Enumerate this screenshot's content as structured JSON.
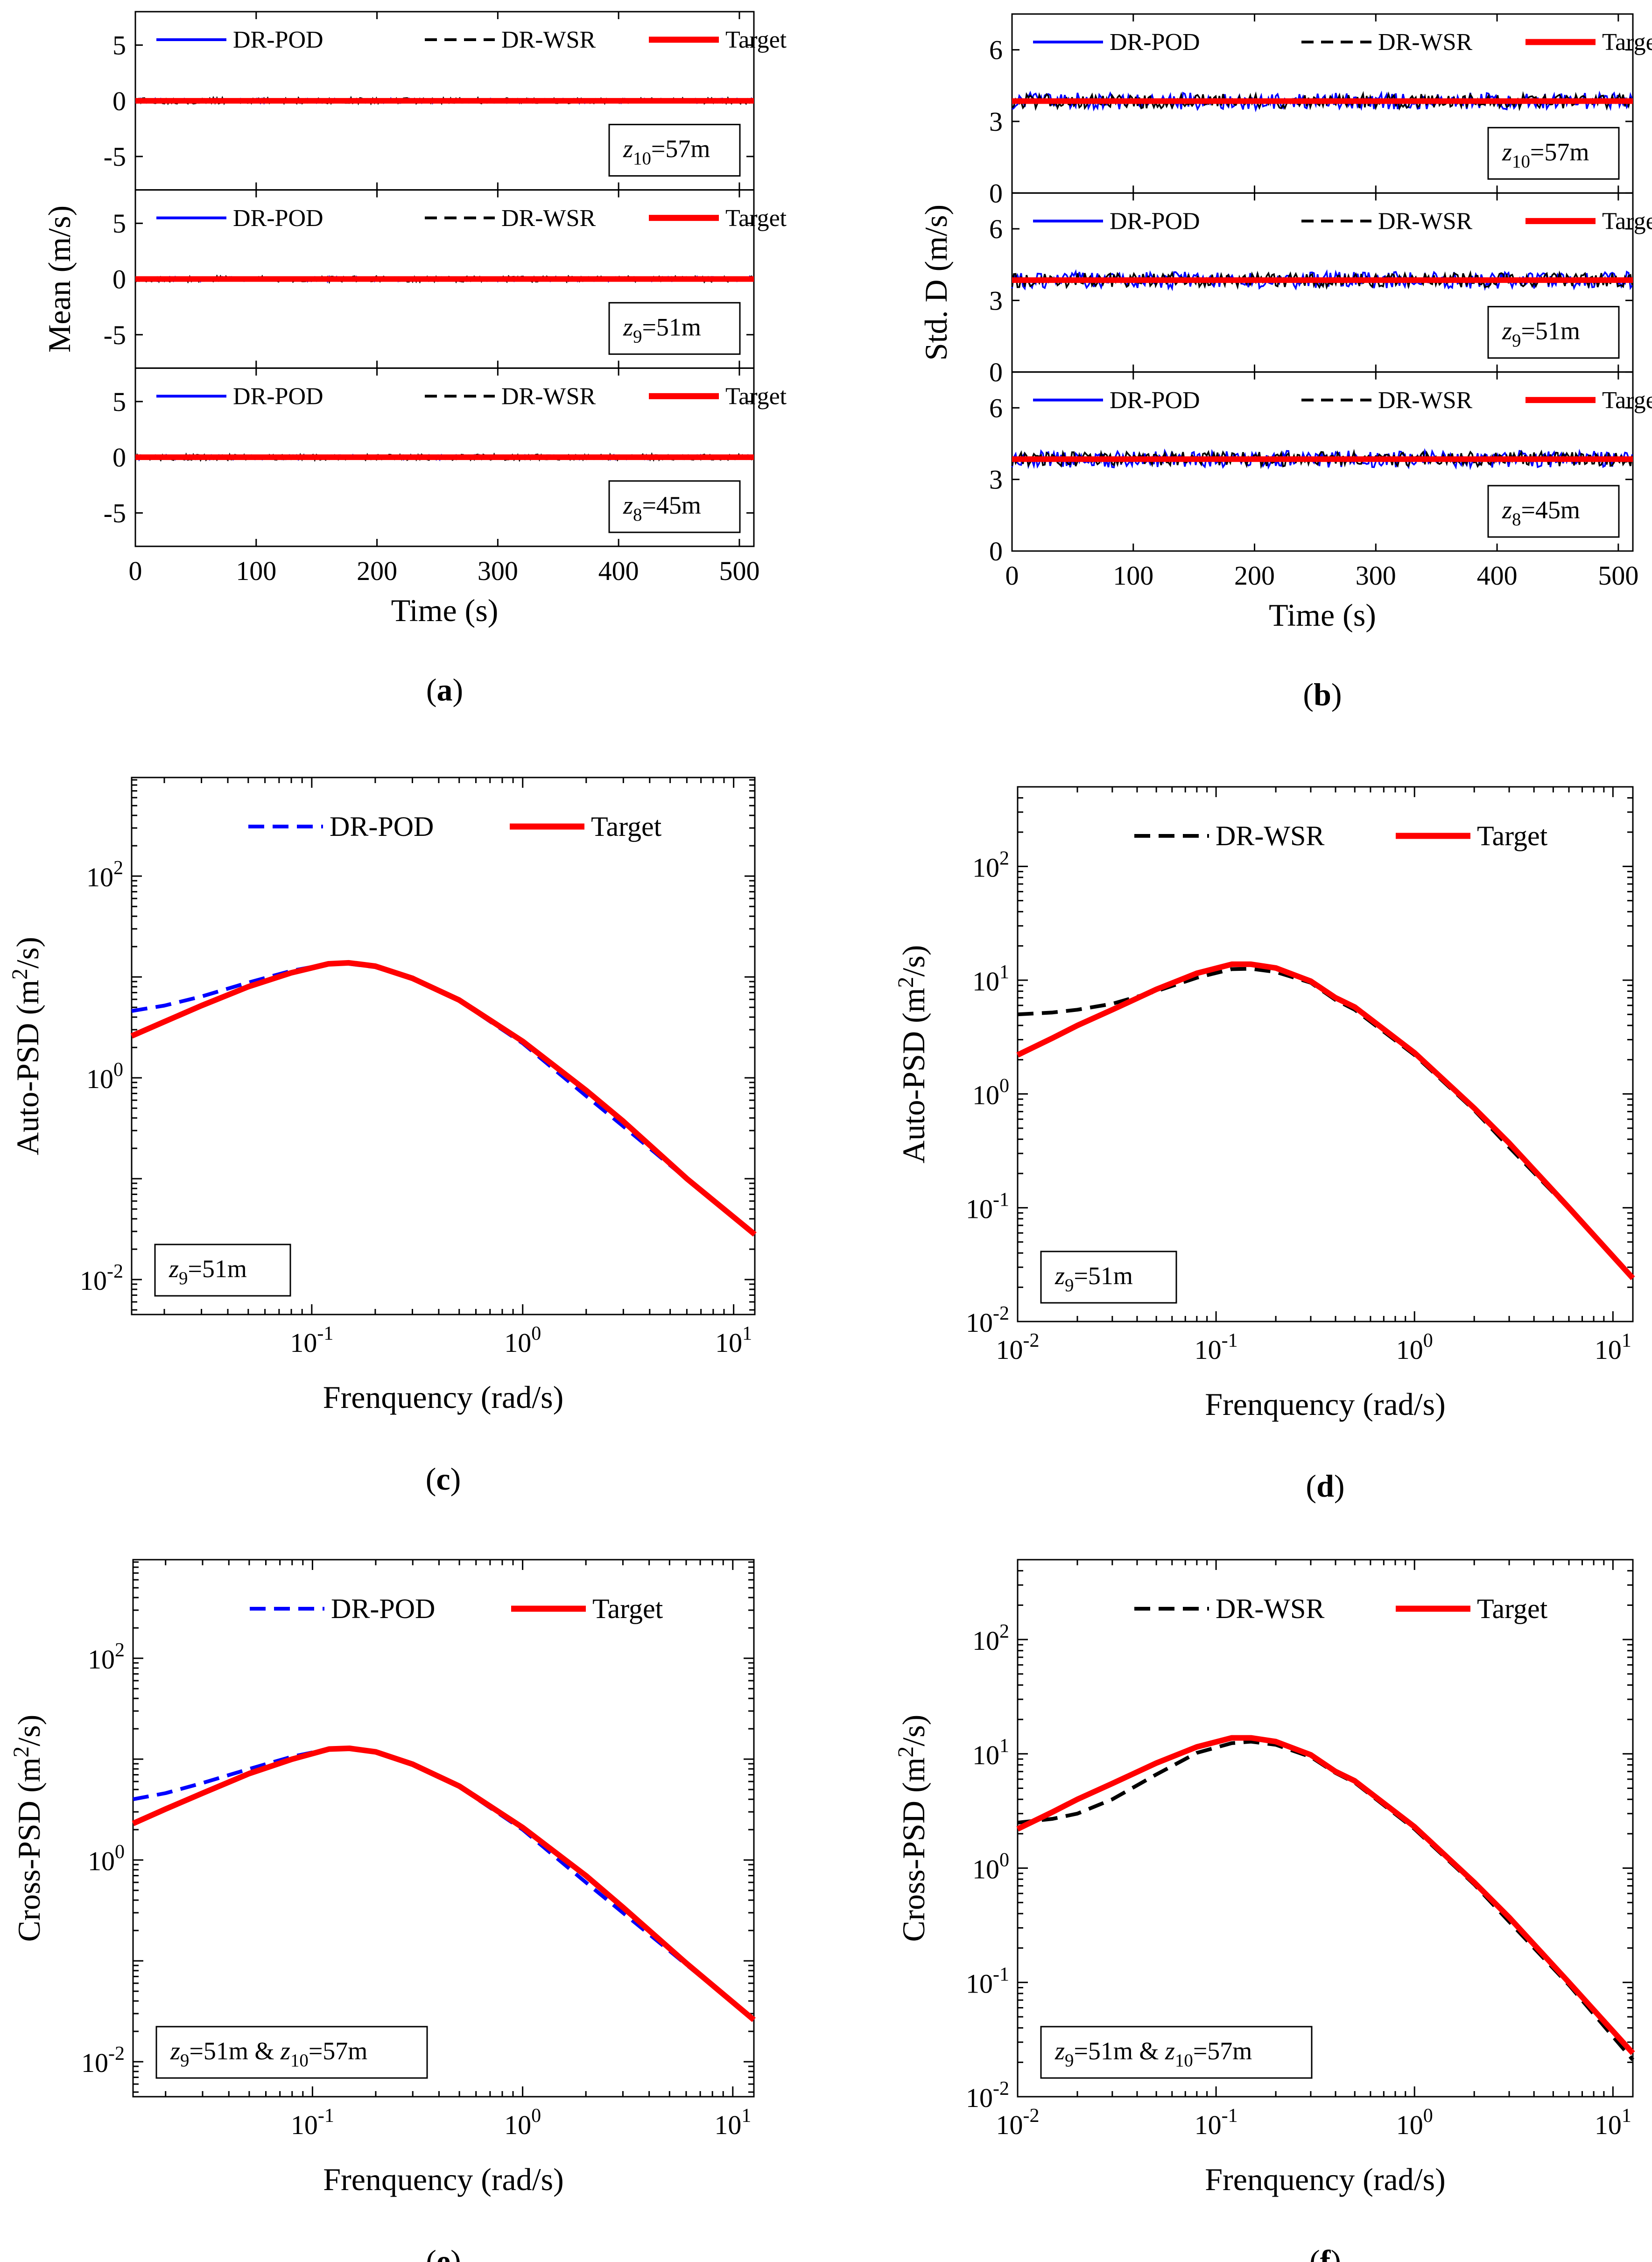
{
  "figure": {
    "colors": {
      "pod": "#0000ff",
      "wsr": "#000000",
      "target": "#ff0000"
    }
  },
  "panels": [
    {
      "id": "a",
      "caption_letter": "a",
      "xlabel": "Time (s)",
      "ylabel": "Mean (m/s)"
    },
    {
      "id": "b",
      "caption_letter": "b",
      "xlabel": "Time (s)",
      "ylabel": "Std. D (m/s)"
    },
    {
      "id": "c",
      "caption_letter": "c",
      "xlabel": "Frenquency (rad/s)",
      "ylabel": "Auto-PSD (m²/s)",
      "box": [
        "z",
        "9",
        "=51m"
      ]
    },
    {
      "id": "d",
      "caption_letter": "d",
      "xlabel": "Frenquency (rad/s)",
      "ylabel": "Auto-PSD (m²/s)",
      "box": [
        "z",
        "9",
        "=51m"
      ]
    },
    {
      "id": "e",
      "caption_letter": "e",
      "xlabel": "Frenquency (rad/s)",
      "ylabel": "Cross-PSD (m²/s)",
      "box": [
        "z",
        "9",
        "=51m & ",
        "z",
        "10",
        "=57m"
      ]
    },
    {
      "id": "f",
      "caption_letter": "f",
      "xlabel": "Frenquency (rad/s)",
      "ylabel": "Cross-PSD (m²/s)",
      "box": [
        "z",
        "9",
        "=51m & ",
        "z",
        "10",
        "=57m"
      ]
    }
  ],
  "chart_data": [
    {
      "panel": "a",
      "type": "line",
      "legend": [
        "DR-POD",
        "DR-WSR",
        "Target"
      ],
      "xlabel": "Time (s)",
      "ylabel": "Mean (m/s)",
      "xlim": [
        0,
        512
      ],
      "ylim": [
        -8,
        8
      ],
      "xticks": [
        0,
        100,
        200,
        300,
        400,
        500
      ],
      "yticks": [
        -5,
        0,
        5
      ],
      "subplots": [
        {
          "height_label": [
            "z",
            "10",
            "=57m"
          ],
          "series": [
            {
              "name": "DR-POD",
              "mean": 0,
              "amplitude": 0.2
            },
            {
              "name": "DR-WSR",
              "mean": 0,
              "amplitude": 0.25
            },
            {
              "name": "Target",
              "x": [
                0,
                512
              ],
              "y": [
                0,
                0
              ]
            }
          ]
        },
        {
          "height_label": [
            "z",
            "9",
            "=51m"
          ],
          "series": [
            {
              "name": "DR-POD",
              "mean": 0,
              "amplitude": 0.2
            },
            {
              "name": "DR-WSR",
              "mean": 0,
              "amplitude": 0.25
            },
            {
              "name": "Target",
              "x": [
                0,
                512
              ],
              "y": [
                0,
                0
              ]
            }
          ]
        },
        {
          "height_label": [
            "z",
            "8",
            "=45m"
          ],
          "series": [
            {
              "name": "DR-POD",
              "mean": 0,
              "amplitude": 0.2
            },
            {
              "name": "DR-WSR",
              "mean": 0,
              "amplitude": 0.25
            },
            {
              "name": "Target",
              "x": [
                0,
                512
              ],
              "y": [
                0,
                0
              ]
            }
          ]
        }
      ]
    },
    {
      "panel": "b",
      "type": "line",
      "legend": [
        "DR-POD",
        "DR-WSR",
        "Target"
      ],
      "xlabel": "Time (s)",
      "ylabel": "Std. D (m/s)",
      "xlim": [
        0,
        512
      ],
      "ylim": [
        0,
        7.5
      ],
      "xticks": [
        0,
        100,
        200,
        300,
        400,
        500
      ],
      "yticks": [
        0,
        3,
        6
      ],
      "subplots": [
        {
          "height_label": [
            "z",
            "10",
            "=57m"
          ],
          "series": [
            {
              "name": "DR-POD",
              "mean": 3.85,
              "amplitude": 0.35
            },
            {
              "name": "DR-WSR",
              "mean": 3.85,
              "amplitude": 0.3
            },
            {
              "name": "Target",
              "x": [
                0,
                512
              ],
              "y": [
                3.85,
                3.85
              ]
            }
          ]
        },
        {
          "height_label": [
            "z",
            "9",
            "=51m"
          ],
          "series": [
            {
              "name": "DR-POD",
              "mean": 3.85,
              "amplitude": 0.35
            },
            {
              "name": "DR-WSR",
              "mean": 3.85,
              "amplitude": 0.3
            },
            {
              "name": "Target",
              "x": [
                0,
                512
              ],
              "y": [
                3.85,
                3.85
              ]
            }
          ]
        },
        {
          "height_label": [
            "z",
            "8",
            "=45m"
          ],
          "series": [
            {
              "name": "DR-POD",
              "mean": 3.85,
              "amplitude": 0.35
            },
            {
              "name": "DR-WSR",
              "mean": 3.85,
              "amplitude": 0.3
            },
            {
              "name": "Target",
              "x": [
                0,
                512
              ],
              "y": [
                3.85,
                3.85
              ]
            }
          ]
        }
      ]
    },
    {
      "panel": "c",
      "type": "line",
      "xscale": "log",
      "yscale": "log",
      "xlabel": "Frenquency (rad/s)",
      "ylabel": "Auto-PSD (m²/s)",
      "xlim": [
        0.014,
        12.6
      ],
      "ylim": [
        0.0045,
        950
      ],
      "xticks": [
        0.1,
        1,
        10
      ],
      "yticks": [
        0.01,
        1,
        100
      ],
      "series": [
        {
          "name": "DR-POD",
          "x": [
            0.014,
            0.02,
            0.03,
            0.05,
            0.08,
            0.12,
            0.15,
            0.2,
            0.3,
            0.5,
            1,
            2,
            3,
            6,
            12.6
          ],
          "y": [
            4.6,
            5.2,
            6.4,
            8.8,
            11.5,
            13.5,
            13.5,
            12.5,
            9.6,
            5.8,
            2.2,
            0.66,
            0.33,
            0.099,
            0.028
          ]
        },
        {
          "name": "Target",
          "x": [
            0.014,
            0.02,
            0.03,
            0.05,
            0.08,
            0.12,
            0.15,
            0.2,
            0.3,
            0.5,
            1,
            2,
            3,
            6,
            12.6
          ],
          "y": [
            2.6,
            3.6,
            5.2,
            8.0,
            11.0,
            13.5,
            13.8,
            12.8,
            9.7,
            5.9,
            2.3,
            0.75,
            0.37,
            0.1,
            0.028
          ]
        }
      ]
    },
    {
      "panel": "d",
      "type": "line",
      "xscale": "log",
      "yscale": "log",
      "xlabel": "Frenquency (rad/s)",
      "ylabel": "Auto-PSD (m²/s)",
      "xlim": [
        0.01,
        12.6
      ],
      "ylim": [
        0.01,
        500
      ],
      "xticks": [
        0.01,
        0.1,
        1,
        10
      ],
      "yticks": [
        0.01,
        0.1,
        1,
        10,
        100
      ],
      "series": [
        {
          "name": "DR-WSR",
          "x": [
            0.01,
            0.015,
            0.02,
            0.03,
            0.05,
            0.08,
            0.12,
            0.15,
            0.2,
            0.3,
            0.4,
            0.5,
            1,
            2,
            3,
            6,
            12.6
          ],
          "y": [
            5.0,
            5.2,
            5.5,
            6.2,
            8.0,
            10.5,
            12.5,
            12.6,
            11.8,
            9.5,
            6.7,
            5.5,
            2.2,
            0.72,
            0.34,
            0.098,
            0.024
          ]
        },
        {
          "name": "Target",
          "x": [
            0.01,
            0.015,
            0.02,
            0.03,
            0.05,
            0.08,
            0.12,
            0.15,
            0.2,
            0.3,
            0.4,
            0.5,
            1,
            2,
            3,
            6,
            12.6
          ],
          "y": [
            2.2,
            3.1,
            4.0,
            5.5,
            8.3,
            11.5,
            13.8,
            13.8,
            12.8,
            9.8,
            7.0,
            5.8,
            2.3,
            0.75,
            0.37,
            0.1,
            0.024
          ]
        }
      ]
    },
    {
      "panel": "e",
      "type": "line",
      "xscale": "log",
      "yscale": "log",
      "xlabel": "Frenquency (rad/s)",
      "ylabel": "Cross-PSD (m²/s)",
      "xlim": [
        0.014,
        12.6
      ],
      "ylim": [
        0.0045,
        950
      ],
      "xticks": [
        0.1,
        1,
        10
      ],
      "yticks": [
        0.01,
        1,
        100
      ],
      "series": [
        {
          "name": "DR-POD",
          "x": [
            0.014,
            0.02,
            0.03,
            0.05,
            0.08,
            0.12,
            0.15,
            0.2,
            0.3,
            0.5,
            1,
            2,
            3,
            6,
            12.6
          ],
          "y": [
            4.0,
            4.6,
            5.8,
            8.0,
            10.6,
            12.6,
            12.6,
            11.6,
            8.8,
            5.3,
            2.0,
            0.6,
            0.3,
            0.092,
            0.026
          ]
        },
        {
          "name": "Target",
          "x": [
            0.014,
            0.02,
            0.03,
            0.05,
            0.08,
            0.12,
            0.15,
            0.2,
            0.3,
            0.5,
            1,
            2,
            3,
            6,
            12.6
          ],
          "y": [
            2.3,
            3.2,
            4.6,
            7.2,
            10.0,
            12.6,
            12.8,
            11.8,
            8.9,
            5.4,
            2.1,
            0.7,
            0.34,
            0.095,
            0.026
          ]
        }
      ]
    },
    {
      "panel": "f",
      "type": "line",
      "xscale": "log",
      "yscale": "log",
      "xlabel": "Frenquency (rad/s)",
      "ylabel": "Cross-PSD (m²/s)",
      "xlim": [
        0.01,
        12.6
      ],
      "ylim": [
        0.01,
        500
      ],
      "xticks": [
        0.01,
        0.1,
        1,
        10
      ],
      "yticks": [
        0.01,
        0.1,
        1,
        10,
        100
      ],
      "series": [
        {
          "name": "DR-WSR",
          "x": [
            0.01,
            0.015,
            0.02,
            0.03,
            0.05,
            0.08,
            0.12,
            0.15,
            0.2,
            0.3,
            0.4,
            0.5,
            1,
            2,
            3,
            6,
            12.6
          ],
          "y": [
            2.5,
            2.7,
            3.0,
            4.0,
            6.6,
            10.2,
            12.4,
            12.8,
            12.0,
            9.4,
            6.8,
            5.6,
            2.2,
            0.72,
            0.34,
            0.095,
            0.021
          ]
        },
        {
          "name": "Target",
          "x": [
            0.01,
            0.015,
            0.02,
            0.03,
            0.05,
            0.08,
            0.12,
            0.15,
            0.2,
            0.3,
            0.4,
            0.5,
            1,
            2,
            3,
            6,
            12.6
          ],
          "y": [
            2.2,
            3.1,
            4.0,
            5.5,
            8.3,
            11.5,
            13.8,
            13.8,
            12.8,
            9.8,
            7.0,
            5.8,
            2.3,
            0.75,
            0.37,
            0.1,
            0.024
          ]
        }
      ]
    }
  ]
}
